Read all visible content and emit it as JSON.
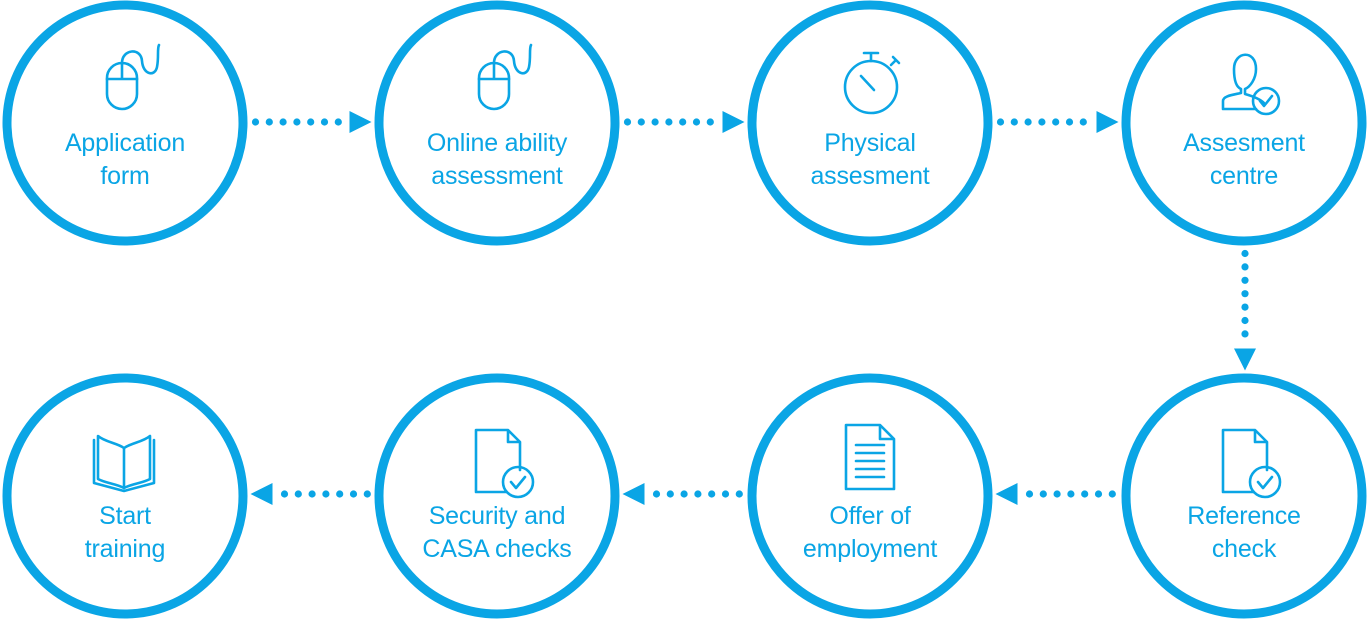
{
  "colors": {
    "accent": "#0aa5e5",
    "background": "#ffffff"
  },
  "steps": [
    {
      "id": "application-form",
      "icon": "computer-mouse-icon",
      "lines": [
        "Application",
        "form"
      ]
    },
    {
      "id": "online-ability-assessment",
      "icon": "computer-mouse-icon",
      "lines": [
        "Online ability",
        "assessment"
      ]
    },
    {
      "id": "physical-assesment",
      "icon": "stopwatch-icon",
      "lines": [
        "Physical",
        "assesment"
      ]
    },
    {
      "id": "assesment-centre",
      "icon": "user-check-icon",
      "lines": [
        "Assesment",
        "centre"
      ]
    },
    {
      "id": "reference-check",
      "icon": "document-check-icon",
      "lines": [
        "Reference",
        "check"
      ]
    },
    {
      "id": "offer-of-employment",
      "icon": "document-text-icon",
      "lines": [
        "Offer of",
        "employment"
      ]
    },
    {
      "id": "security-casa-checks",
      "icon": "document-check-icon",
      "lines": [
        "Security and",
        "CASA checks"
      ]
    },
    {
      "id": "start-training",
      "icon": "open-book-icon",
      "lines": [
        "Start",
        "training"
      ]
    }
  ],
  "connectors": [
    {
      "from": 0,
      "to": 1,
      "direction": "right"
    },
    {
      "from": 1,
      "to": 2,
      "direction": "right"
    },
    {
      "from": 2,
      "to": 3,
      "direction": "right"
    },
    {
      "from": 3,
      "to": 4,
      "direction": "down"
    },
    {
      "from": 4,
      "to": 5,
      "direction": "left"
    },
    {
      "from": 5,
      "to": 6,
      "direction": "left"
    },
    {
      "from": 6,
      "to": 7,
      "direction": "left"
    }
  ]
}
